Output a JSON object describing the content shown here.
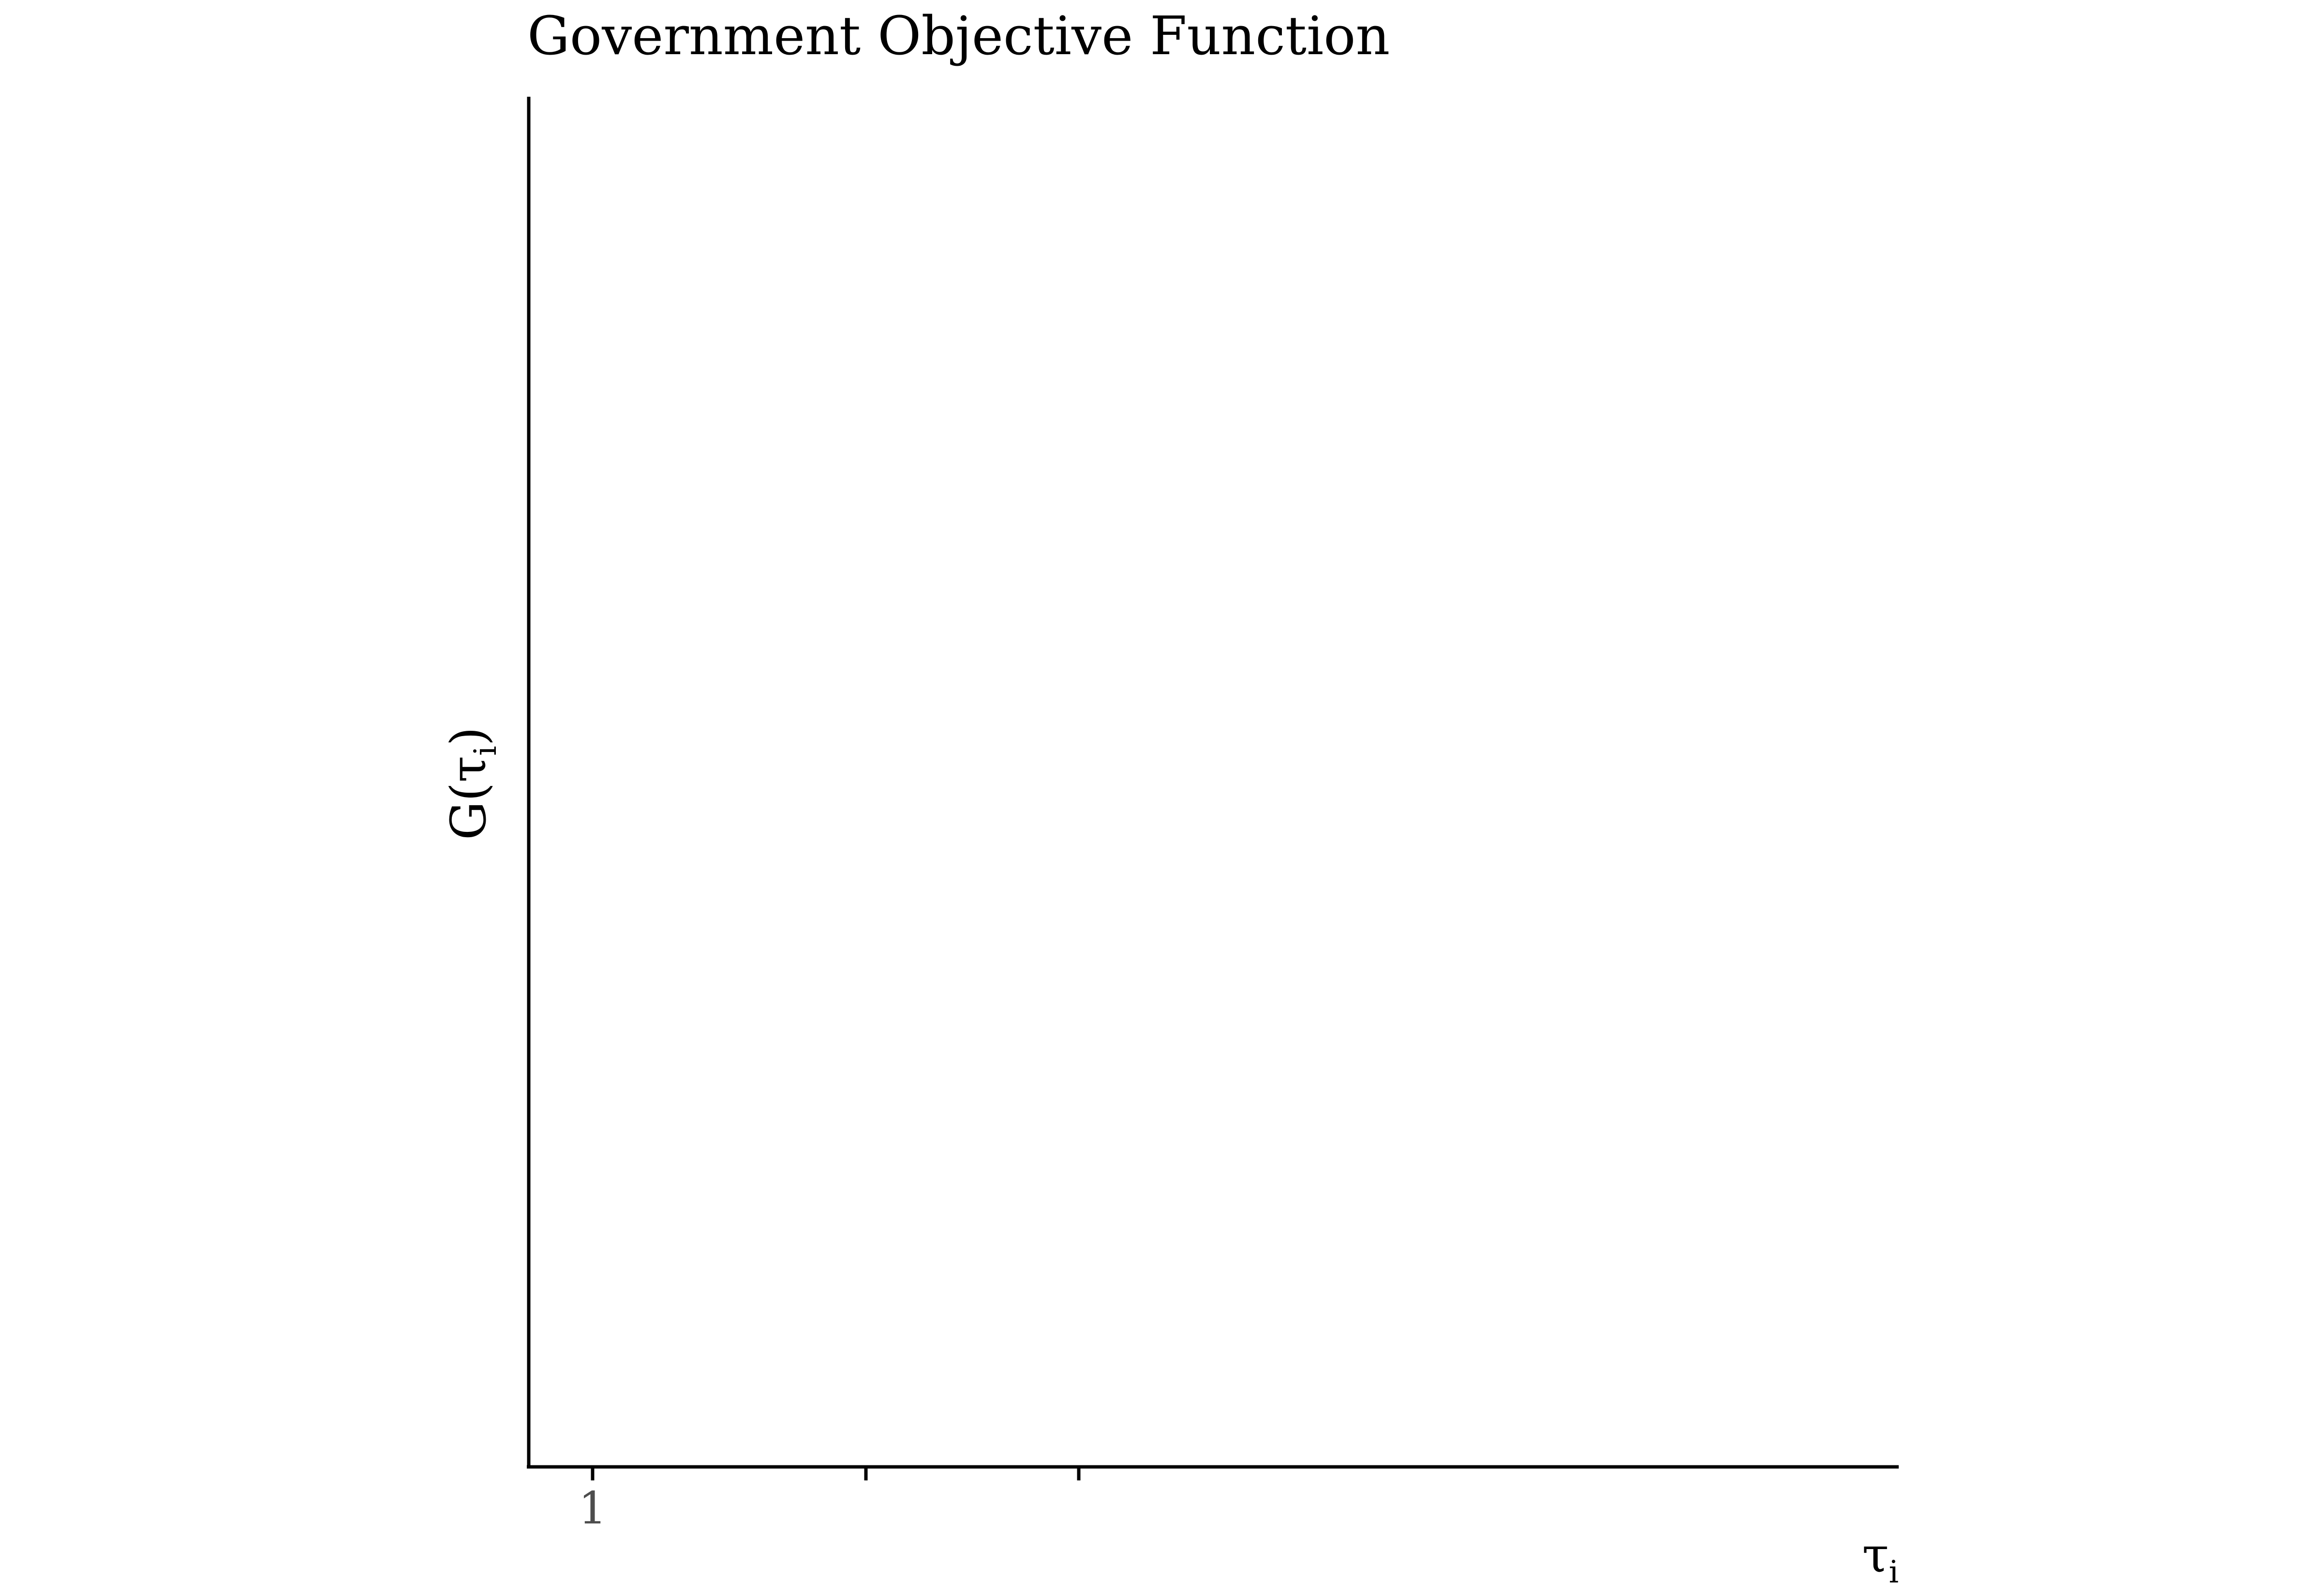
{
  "chart_data": {
    "type": "line",
    "title": "Government Objective Function",
    "ylabel": {
      "base": "G(",
      "symbol": "τ",
      "subscript": "i",
      "close": ")"
    },
    "xlabel": {
      "symbol": "τ",
      "subscript": "i"
    },
    "ticks": [
      {
        "label": "1"
      },
      {
        "label": ""
      },
      {
        "label": ""
      }
    ],
    "series": [],
    "grid": false,
    "colors": {
      "axis": "#000000",
      "tick_label": "#4d4d4d",
      "text": "#000000"
    }
  }
}
